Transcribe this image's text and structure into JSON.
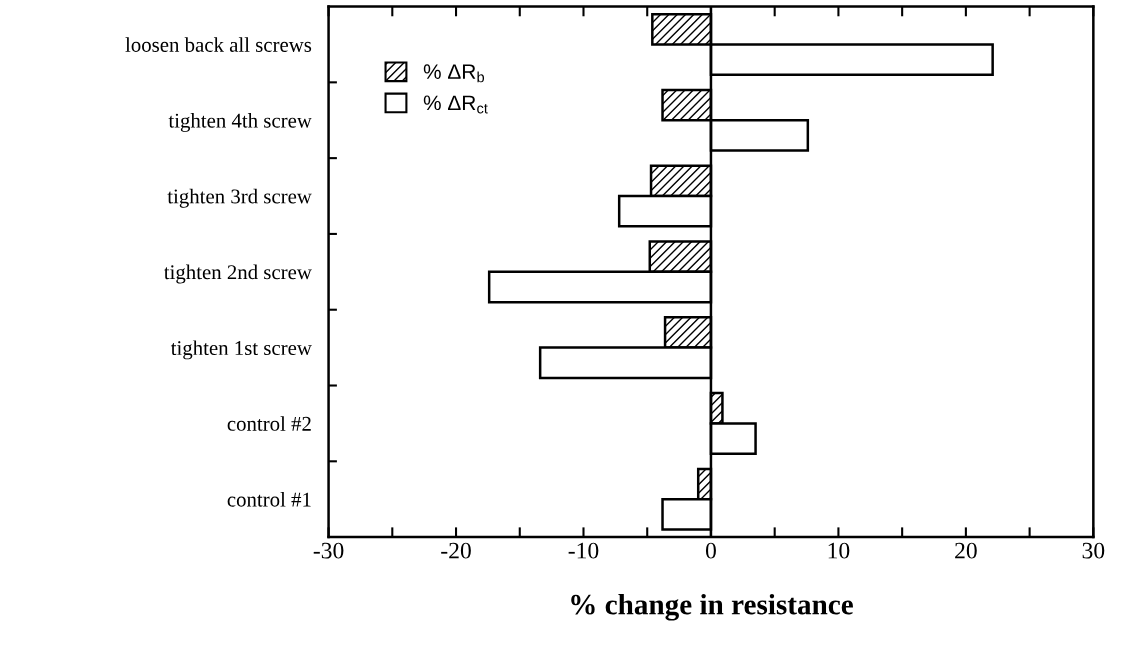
{
  "chart_data": {
    "type": "bar",
    "orientation": "horizontal",
    "categories": [
      "loosen back all screws",
      "tighten 4th screw",
      "tighten 3rd screw",
      "tighten 2nd screw",
      "tighten 1st screw",
      "control #2",
      "control #1"
    ],
    "series": [
      {
        "name": "% ΔR$_{b}$",
        "color": "#000000",
        "values": [
          -4.6,
          -3.8,
          -4.7,
          -4.8,
          -3.6,
          0.9,
          -1.0
        ]
      },
      {
        "name": "% ΔR$_{ct}$",
        "color": "#ffffff",
        "values": [
          22.1,
          7.6,
          -7.2,
          -17.4,
          -13.4,
          3.5,
          -3.8
        ]
      }
    ],
    "xlabel": "% change in resistance",
    "xlim": [
      -30,
      30
    ],
    "xticks": [
      -30,
      {
        "value": -25,
        "label": null
      },
      -20,
      {
        "value": -15,
        "label": null
      },
      -10,
      {
        "value": -5,
        "label": null
      },
      0,
      {
        "value": 5,
        "label": null
      },
      10,
      {
        "value": 15,
        "label": null
      },
      20,
      {
        "value": 25,
        "label": null
      },
      30
    ],
    "ref_lines": [
      {
        "axis": "x",
        "value": 0,
        "color": "#000000"
      }
    ],
    "legend": "top left",
    "grid": false
  }
}
